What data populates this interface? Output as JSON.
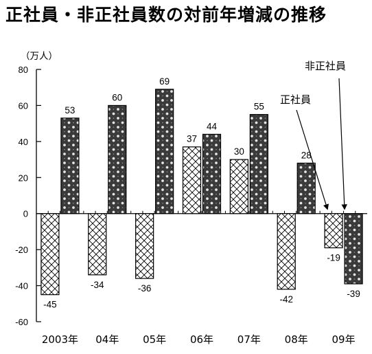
{
  "title": "正社員・非正社員数の対前年増減の推移",
  "unit_label": "（万人）",
  "chart_data": {
    "type": "bar",
    "title": "正社員・非正社員数の対前年増減の推移",
    "ylabel": "（万人）",
    "xlabel": "",
    "ylim": [
      -60,
      80
    ],
    "yticks": [
      80,
      60,
      40,
      20,
      0,
      -20,
      -40,
      -60
    ],
    "categories": [
      "2003年",
      "04年",
      "05年",
      "06年",
      "07年",
      "08年",
      "09年"
    ],
    "series": [
      {
        "name": "正社員",
        "values": [
          -45,
          -34,
          -36,
          37,
          30,
          -42,
          -19
        ],
        "pattern": "crosshatch"
      },
      {
        "name": "非正社員",
        "values": [
          53,
          60,
          69,
          44,
          55,
          28,
          -39
        ],
        "pattern": "dotted-dark"
      }
    ],
    "grid": false,
    "legend": "callout arrows top-right"
  },
  "callouts": {
    "regular": "正社員",
    "nonregular": "非正社員"
  }
}
